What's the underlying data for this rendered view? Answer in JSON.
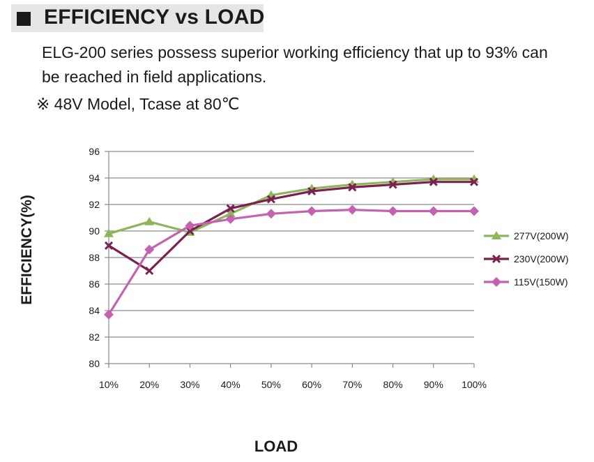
{
  "header": {
    "title": "EFFICIENCY vs LOAD"
  },
  "description": {
    "line1": "ELG-200 series possess superior working efficiency that up to 93% can",
    "line2": "be reached in field applications.",
    "line3": "※ 48V Model, Tcase at 80℃"
  },
  "chart_data": {
    "type": "line",
    "title": "",
    "xlabel": "LOAD",
    "ylabel": "EFFICIENCY(%)",
    "categories": [
      "10%",
      "20%",
      "30%",
      "40%",
      "50%",
      "60%",
      "70%",
      "80%",
      "90%",
      "100%"
    ],
    "ylim": [
      80,
      96
    ],
    "yticks": [
      80,
      82,
      84,
      86,
      88,
      90,
      92,
      94,
      96
    ],
    "grid": true,
    "legend_position": "right",
    "series": [
      {
        "name": "277V(200W)",
        "color": "#8db55a",
        "marker": "triangle",
        "values": [
          89.8,
          90.7,
          89.9,
          91.3,
          92.7,
          93.2,
          93.5,
          93.7,
          93.9,
          93.9
        ]
      },
      {
        "name": "230V(200W)",
        "color": "#7b2150",
        "marker": "x",
        "values": [
          88.9,
          87.0,
          90.0,
          91.7,
          92.4,
          93.0,
          93.3,
          93.5,
          93.7,
          93.7
        ]
      },
      {
        "name": "115V(150W)",
        "color": "#c461b0",
        "marker": "diamond",
        "values": [
          83.7,
          88.6,
          90.4,
          90.9,
          91.3,
          91.5,
          91.6,
          91.5,
          91.5,
          91.5
        ]
      }
    ]
  }
}
